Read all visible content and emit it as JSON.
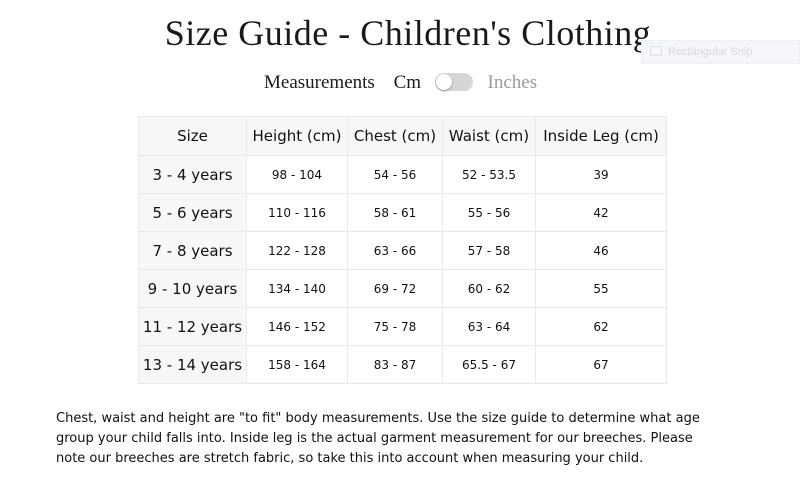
{
  "page": {
    "title": "Size Guide - Children's Clothing"
  },
  "tooltip": {
    "text": "Rectangular Snip"
  },
  "units": {
    "label": "Measurements",
    "cm": "Cm",
    "inches": "Inches",
    "selected": "Cm"
  },
  "table": {
    "headers": [
      "Size",
      "Height (cm)",
      "Chest (cm)",
      "Waist (cm)",
      "Inside Leg (cm)"
    ],
    "rows": [
      [
        "3 - 4 years",
        "98 - 104",
        "54 - 56",
        "52 - 53.5",
        "39"
      ],
      [
        "5 - 6 years",
        "110 - 116",
        "58 - 61",
        "55 - 56",
        "42"
      ],
      [
        "7 - 8 years",
        "122 - 128",
        "63 - 66",
        "57 - 58",
        "46"
      ],
      [
        "9 - 10 years",
        "134 - 140",
        "69 - 72",
        "60 - 62",
        "55"
      ],
      [
        "11 - 12 years",
        "146 - 152",
        "75 - 78",
        "63 - 64",
        "62"
      ],
      [
        "13 - 14 years",
        "158 - 164",
        "83 - 87",
        "65.5 - 67",
        "67"
      ]
    ]
  },
  "note": {
    "line1": "Chest, waist and height are \"to fit\" body measurements. Use the size guide to determine what age",
    "line2": "group your child falls into. Inside leg is the actual garment measurement for our breeches. Please",
    "line3": "note our breeches are stretch fabric, so take this into account when measuring your child."
  }
}
